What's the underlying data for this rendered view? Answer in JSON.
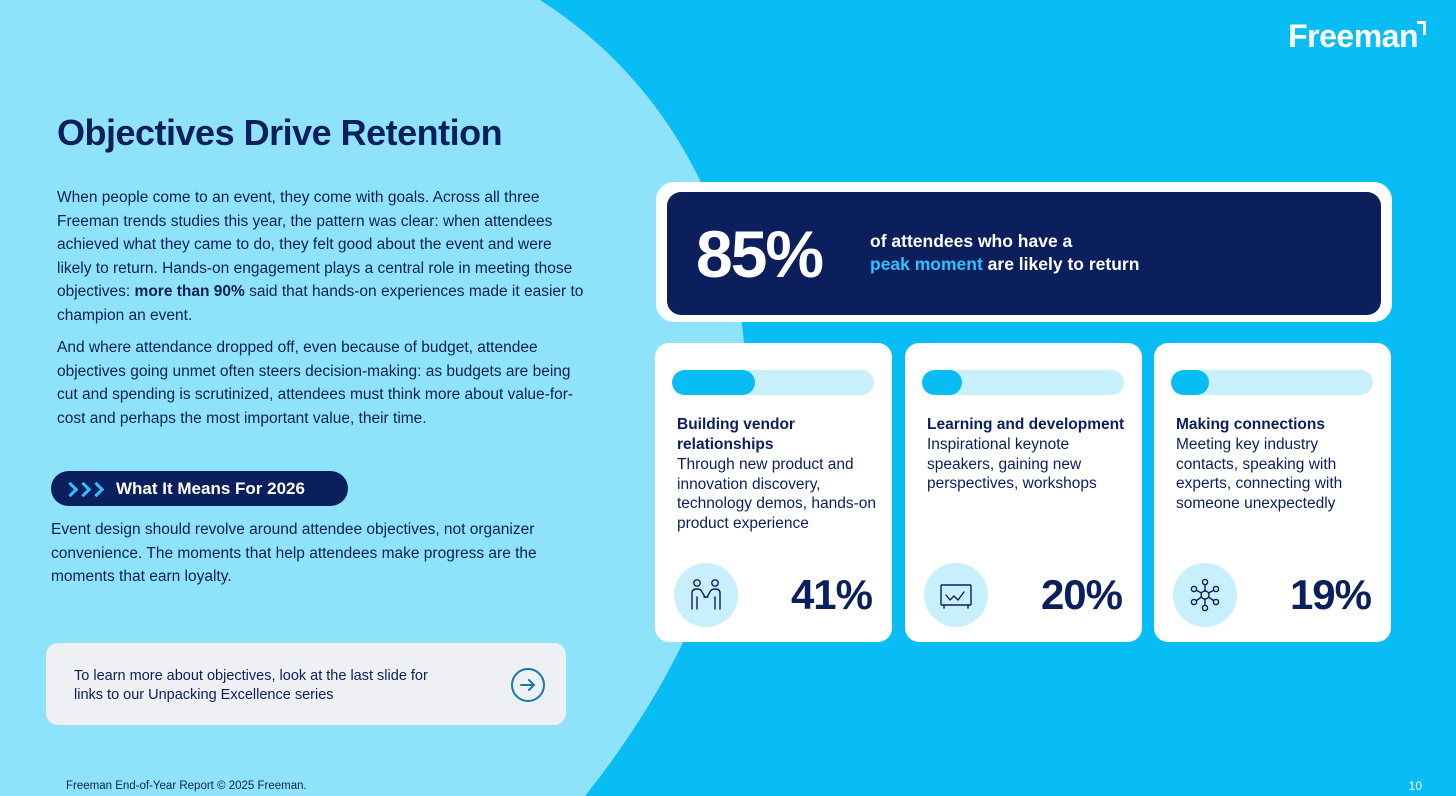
{
  "brand": {
    "logo": "Freeman",
    "colors": {
      "accent": "#07bdf4",
      "light": "#8ee3fb",
      "navy": "#0b1f5c",
      "highlight": "#29c4ff"
    }
  },
  "title": "Objectives Drive Retention",
  "intro": {
    "p1_before": "When people come to an event, they come with goals. Across all three Freeman trends studies this year, the pattern was clear: when attendees achieved what they came to do, they felt good about the event and were likely to return. Hands-on engagement plays a central role in meeting those objectives: ",
    "p1_bold": "more than 90%",
    "p1_after": " said that hands-on experiences made it easier to champion an event.",
    "p2": "And where attendance dropped off, even because of budget, attendee objectives going unmet often steers decision-making: as budgets are being cut and spending is scrutinized, attendees must think more about value-for-cost and perhaps the most important value, their time."
  },
  "means": {
    "badge_icon": "triple-chevron-right-icon",
    "badge": "What It Means For 2026",
    "text": "Event design should revolve around attendee objectives, not organizer convenience. The moments that help attendees make progress are the moments that earn loyalty."
  },
  "learn_more": {
    "text": "To learn more about objectives, look at the last slide for links to our Unpacking Excellence series",
    "icon": "arrow-right-circle-icon"
  },
  "headline_stat": {
    "value": "85%",
    "desc_line1": "of attendees who have a",
    "desc_highlight": "peak moment",
    "desc_rest": " are likely to return"
  },
  "cards": [
    {
      "title": "Building vendor relationships",
      "desc": "Through new product and innovation discovery, technology demos, hands-on product experience",
      "pct": "41%",
      "fill": 0.41,
      "icon": "handshake-people-icon"
    },
    {
      "title": "Learning and development",
      "desc": "Inspirational keynote speakers, gaining new perspectives, workshops",
      "pct": "20%",
      "fill": 0.2,
      "icon": "presentation-screen-icon"
    },
    {
      "title": "Making connections",
      "desc": "Meeting key industry contacts, speaking with experts, connecting with someone unexpectedly",
      "pct": "19%",
      "fill": 0.19,
      "icon": "network-nodes-icon"
    }
  ],
  "footer": {
    "copyright": "Freeman End-of-Year Report © 2025 Freeman.",
    "page": "10"
  }
}
